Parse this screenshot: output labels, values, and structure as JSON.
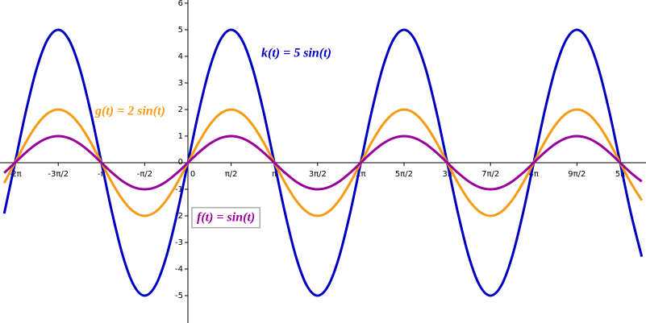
{
  "chart_data": {
    "type": "line",
    "x": [
      -6.6759,
      -6.2832,
      -5.8905,
      -5.4978,
      -5.1051,
      -4.7124,
      -4.3197,
      -3.927,
      -3.5343,
      -3.1416,
      -2.7489,
      -2.3562,
      -1.9635,
      -1.5708,
      -1.1781,
      -0.7854,
      -0.3927,
      0,
      0.3927,
      0.7854,
      1.1781,
      1.5708,
      1.9635,
      2.3562,
      2.7489,
      3.1416,
      3.5343,
      3.927,
      4.3197,
      4.7124,
      5.1051,
      5.4978,
      5.8905,
      6.2832,
      6.6759,
      7.0686,
      7.4613,
      7.854,
      8.2467,
      8.6394,
      9.0321,
      9.4248,
      9.8175,
      10.2102,
      10.6029,
      10.9956,
      11.3883,
      11.781,
      12.1737,
      12.5664,
      12.9591,
      13.3518,
      13.7445,
      14.1372,
      14.5299,
      14.9226,
      15.3153,
      15.708,
      16.1007,
      16.4934
    ],
    "series": [
      {
        "name": "k(t) = 5 sin(t)",
        "color": "#0000c0",
        "values": [
          -1.9134,
          0,
          1.9134,
          3.5355,
          4.6194,
          5,
          4.6194,
          3.5355,
          1.9134,
          0,
          -1.9134,
          -3.5355,
          -4.6194,
          -5,
          -4.6194,
          -3.5355,
          -1.9134,
          0,
          1.9134,
          3.5355,
          4.6194,
          5,
          4.6194,
          3.5355,
          1.9134,
          0,
          -1.9134,
          -3.5355,
          -4.6194,
          -5,
          -4.6194,
          -3.5355,
          -1.9134,
          0,
          1.9134,
          3.5355,
          4.6194,
          5,
          4.6194,
          3.5355,
          1.9134,
          0,
          -1.9134,
          -3.5355,
          -4.6194,
          -5,
          -4.6194,
          -3.5355,
          -1.9134,
          0,
          1.9134,
          3.5355,
          4.6194,
          5,
          4.6194,
          3.5355,
          1.9134,
          0,
          -1.9134,
          -3.5355
        ]
      },
      {
        "name": "g(t) = 2 sin(t)",
        "color": "#f59b14",
        "values": [
          -0.7654,
          0,
          0.7654,
          1.4142,
          1.8478,
          2,
          1.8478,
          1.4142,
          0.7654,
          0,
          -0.7654,
          -1.4142,
          -1.8478,
          -2,
          -1.8478,
          -1.4142,
          -0.7654,
          0,
          0.7654,
          1.4142,
          1.8478,
          2,
          1.8478,
          1.4142,
          0.7654,
          0,
          -0.7654,
          -1.4142,
          -1.8478,
          -2,
          -1.8478,
          -1.4142,
          -0.7654,
          0,
          0.7654,
          1.4142,
          1.8478,
          2,
          1.8478,
          1.4142,
          0.7654,
          0,
          -0.7654,
          -1.4142,
          -1.8478,
          -2,
          -1.8478,
          -1.4142,
          -0.7654,
          0,
          0.7654,
          1.4142,
          1.8478,
          2,
          1.8478,
          1.4142,
          0.7654,
          0,
          -0.7654,
          -1.4142
        ]
      },
      {
        "name": "f(t) = sin(t)",
        "color": "#990099",
        "values": [
          -0.3827,
          0,
          0.3827,
          0.7071,
          0.9239,
          1,
          0.9239,
          0.7071,
          0.3827,
          0,
          -0.3827,
          -0.7071,
          -0.9239,
          -1,
          -0.9239,
          -0.7071,
          -0.3827,
          0,
          0.3827,
          0.7071,
          0.9239,
          1,
          0.9239,
          0.7071,
          0.3827,
          0,
          -0.3827,
          -0.7071,
          -0.9239,
          -1,
          -0.9239,
          -0.7071,
          -0.3827,
          0,
          0.3827,
          0.7071,
          0.9239,
          1,
          0.9239,
          0.7071,
          0.3827,
          0,
          -0.3827,
          -0.7071,
          -0.9239,
          -1,
          -0.9239,
          -0.7071,
          -0.3827,
          0,
          0.3827,
          0.7071,
          0.9239,
          1,
          0.9239,
          0.7071,
          0.3827,
          0,
          -0.3827,
          -0.7071
        ]
      }
    ],
    "xlim": [
      -6.829,
      16.647
    ],
    "ylim": [
      -6.03,
      6.12
    ],
    "xticks": [
      {
        "value": -6.2832,
        "label": "-2π"
      },
      {
        "value": -4.7124,
        "label": "-3π/2"
      },
      {
        "value": -3.1416,
        "label": "-π"
      },
      {
        "value": -1.5708,
        "label": "-π/2"
      },
      0,
      {
        "value": 1.5708,
        "label": "π/2"
      },
      {
        "value": 3.1416,
        "label": "π"
      },
      {
        "value": 4.7124,
        "label": "3π/2"
      },
      {
        "value": 6.2832,
        "label": "2π"
      },
      {
        "value": 7.854,
        "label": "5π/2"
      },
      {
        "value": 9.4248,
        "label": "3π"
      },
      {
        "value": 10.9956,
        "label": "7π/2"
      },
      {
        "value": 12.5664,
        "label": "4π"
      },
      {
        "value": 14.1372,
        "label": "9π/2"
      },
      {
        "value": 15.708,
        "label": "5π"
      }
    ],
    "yticks": [
      -5,
      -4,
      -3,
      -2,
      -1,
      0,
      1,
      2,
      3,
      4,
      5,
      6
    ]
  }
}
